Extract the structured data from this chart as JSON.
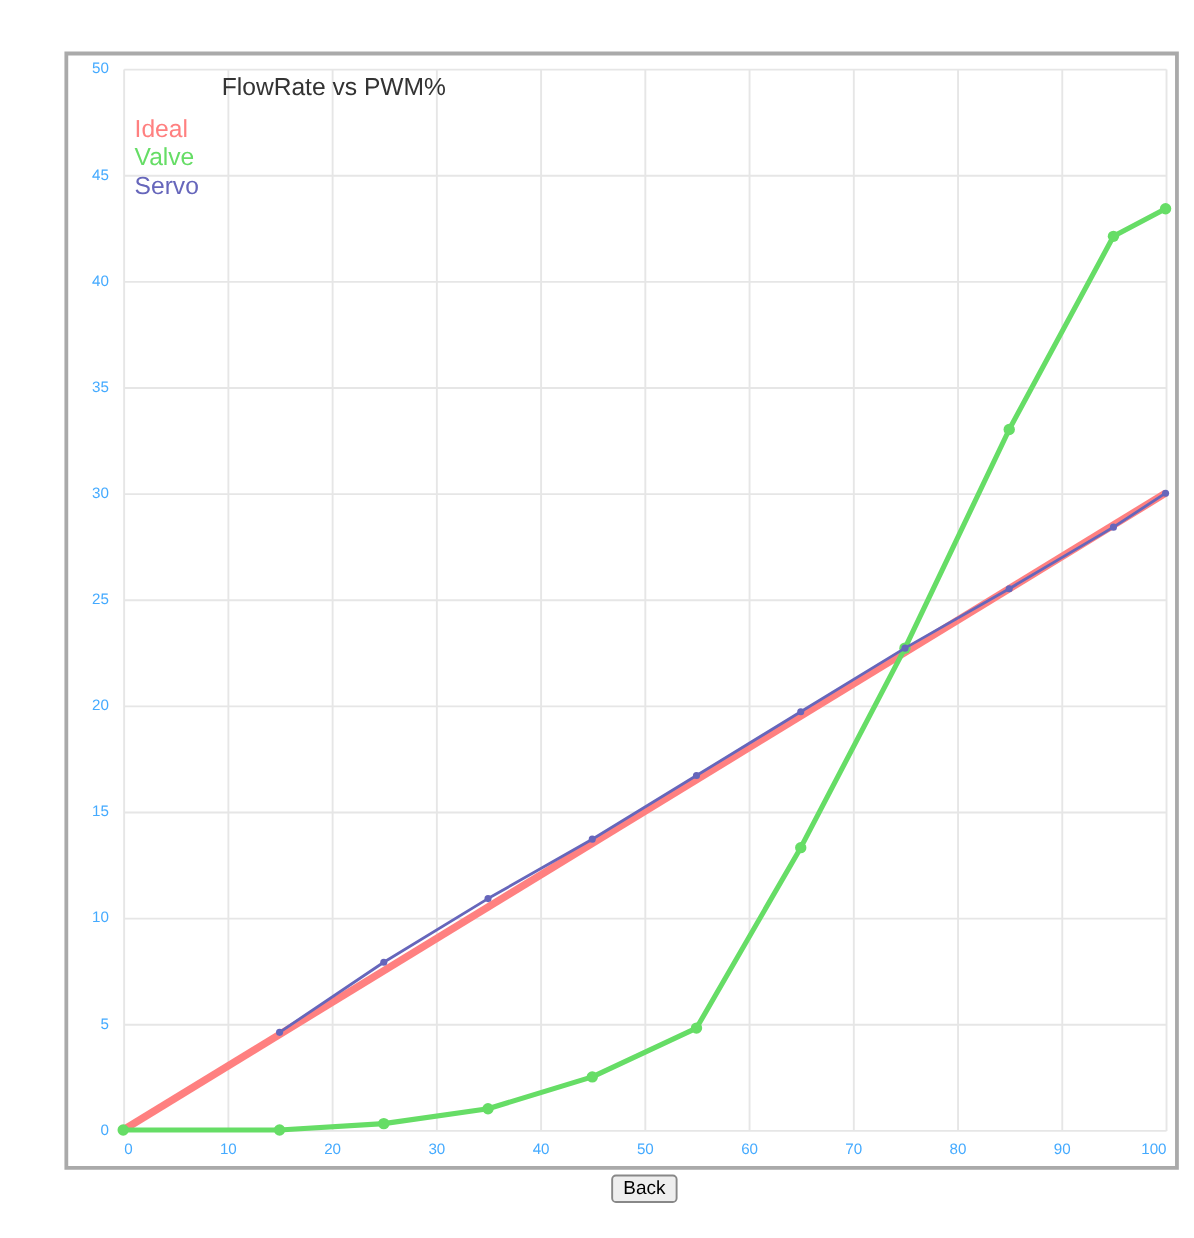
{
  "chart_data": {
    "type": "line",
    "title": "FlowRate vs PWM%",
    "legend": "top left",
    "grid": true,
    "xlim": [
      0,
      100
    ],
    "xticks": [
      0,
      10,
      20,
      30,
      40,
      50,
      60,
      70,
      80,
      90,
      100
    ],
    "ylim": [
      0,
      50
    ],
    "yticks": [
      0,
      5,
      10,
      15,
      20,
      25,
      30,
      35,
      40,
      45,
      50
    ],
    "series": [
      {
        "name": "Ideal",
        "color": "#ff8080",
        "marker": "none",
        "x": [
          0,
          100
        ],
        "values": [
          0,
          30
        ]
      },
      {
        "name": "Valve",
        "color": "#66dd66",
        "marker": "circle",
        "x": [
          0,
          15,
          25,
          35,
          45,
          55,
          65,
          75,
          85,
          95,
          100
        ],
        "values": [
          0,
          0,
          0.3,
          1.0,
          2.5,
          4.8,
          13.3,
          22.7,
          33,
          42.1,
          43.4
        ]
      },
      {
        "name": "Servo",
        "color": "#6666bb",
        "marker": "circle",
        "x": [
          15,
          25,
          35,
          45,
          55,
          65,
          75,
          85,
          95,
          100
        ],
        "values": [
          4.6,
          7.9,
          10.9,
          13.7,
          16.7,
          19.7,
          22.7,
          25.5,
          28.4,
          30
        ]
      }
    ],
    "annotations": [
      "Back"
    ]
  }
}
